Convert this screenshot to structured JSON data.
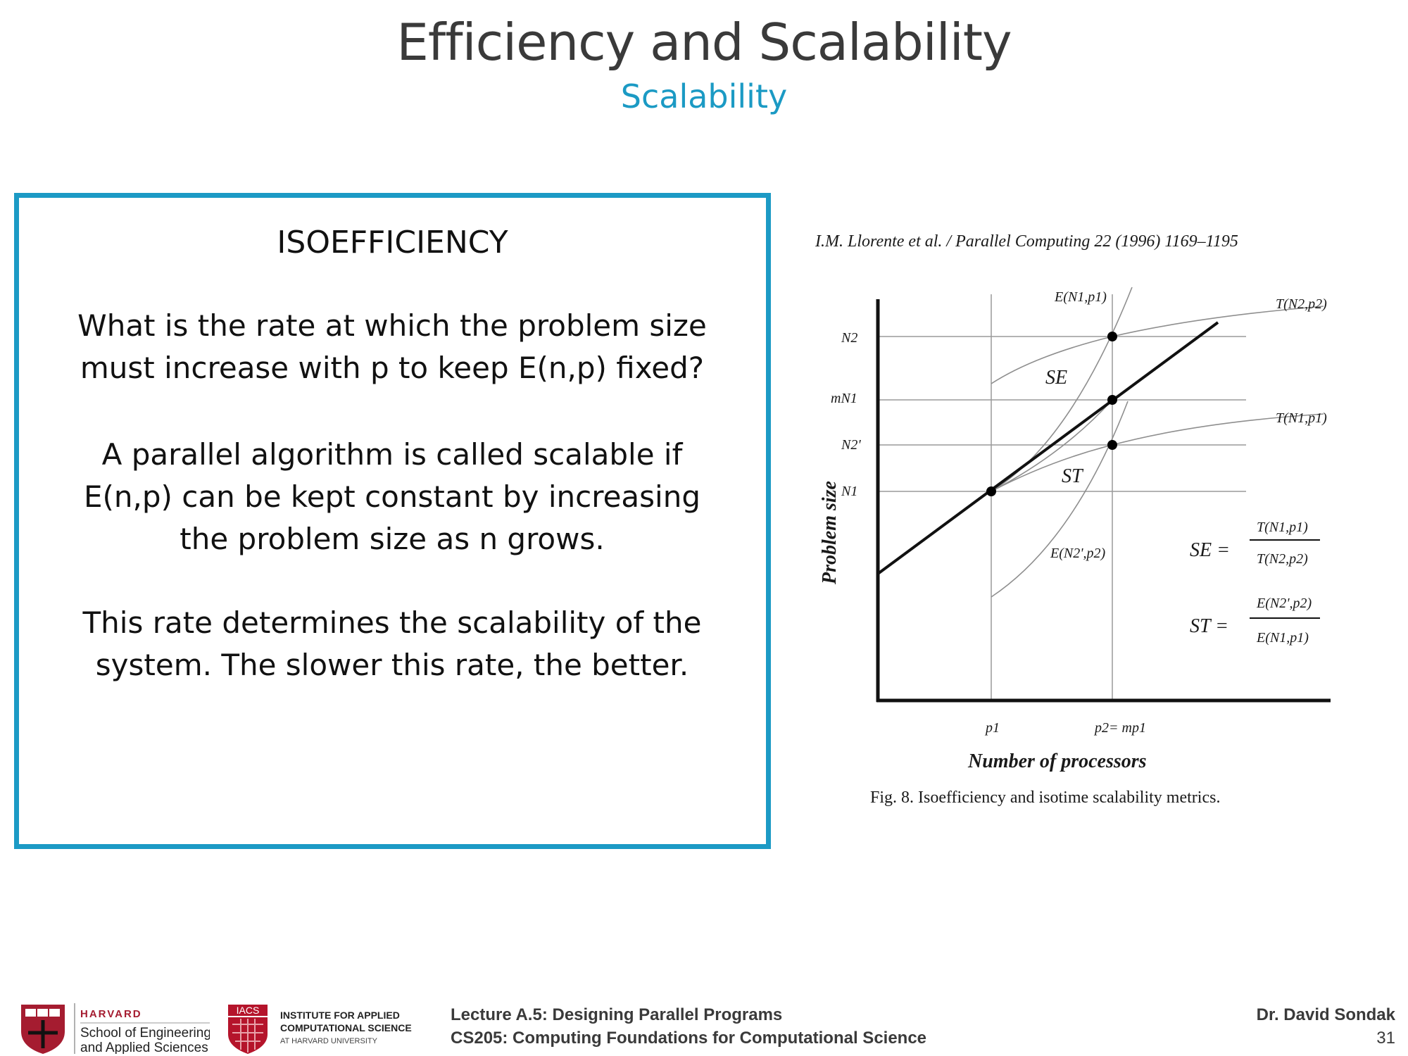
{
  "slide": {
    "title": "Efficiency and Scalability",
    "subtitle": "Scalability"
  },
  "box": {
    "heading": "ISOEFFICIENCY",
    "paragraphs": [
      [
        "What is the rate at which the problem size",
        "must increase with p to keep E(n,p) fixed?"
      ],
      [
        "A parallel algorithm is called scalable if",
        "E(n,p) can be kept constant by increasing",
        "the problem size as n grows."
      ],
      [
        "This rate determines the scalability of the",
        "system. The slower this rate, the better."
      ]
    ]
  },
  "figure": {
    "citation": "I.M. Llorente et al. / Parallel Computing 22 (1996) 1169–1195",
    "caption": "Fig. 8. Isoefficiency and isotime scalability metrics.",
    "xlabel": "Number of processors",
    "ylabel": "Problem size",
    "x_ticks": [
      "p1",
      "p2= mp1"
    ],
    "y_ticks": [
      "N2",
      "mN1",
      "N2'",
      "N1"
    ],
    "curve_labels": {
      "e_upper": "E(N1,p1)",
      "t_upper": "T(N2,p2)",
      "t_lower": "T(N1,p1)",
      "e_lower": "E(N2',p2)",
      "se": "SE",
      "st": "ST"
    },
    "formulas": {
      "se_lhs": "SE =",
      "se_num": "T(N1,p1)",
      "se_den": "T(N2,p2)",
      "st_lhs": "ST =",
      "st_num": "E(N2',p2)",
      "st_den": "E(N1,p1)"
    }
  },
  "footer": {
    "harvard_line1": "HARVARD",
    "harvard_line2": "School of Engineering",
    "harvard_line3": "and Applied Sciences",
    "iacs_badge": "IACS",
    "iacs_line1": "INSTITUTE FOR APPLIED",
    "iacs_line2": "COMPUTATIONAL SCIENCE",
    "iacs_line3": "AT HARVARD UNIVERSITY",
    "lecture": "Lecture A.5: Designing Parallel Programs",
    "course": "CS205: Computing Foundations for Computational Science",
    "author": "Dr. David Sondak",
    "page": "31"
  },
  "colors": {
    "accent": "#1c9ac5",
    "title": "#3a3a3a",
    "harvard_red": "#a51c30",
    "iacs_red": "#b5142b"
  }
}
